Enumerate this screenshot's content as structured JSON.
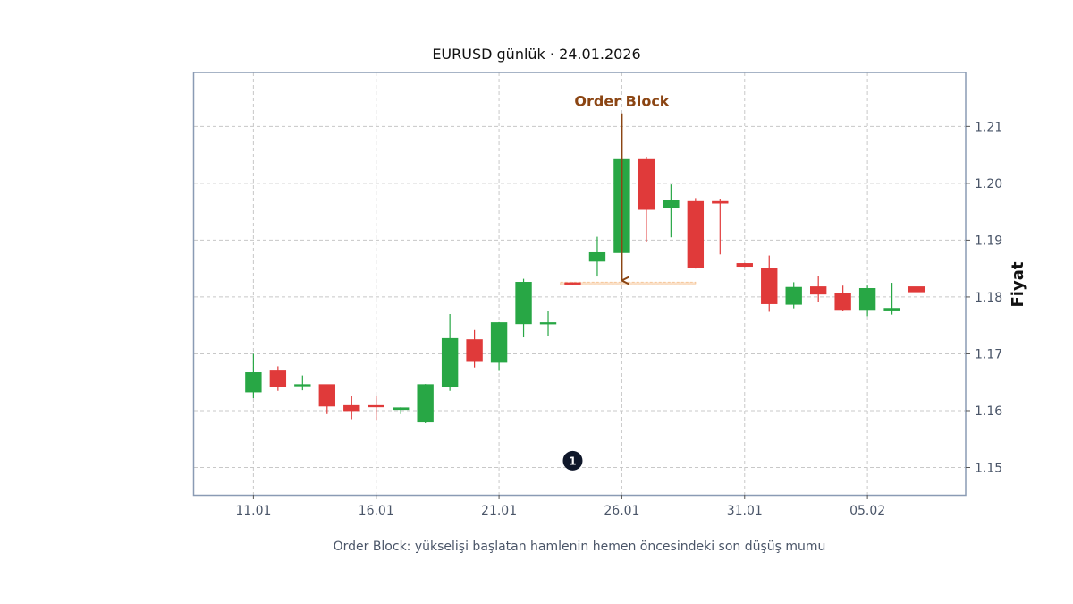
{
  "title": "EURUSD günlük · 24.01.2026",
  "caption": "Order Block: yükselişi başlatan hamlenin hemen öncesindeki son düşüş mumu",
  "colors": {
    "up": "#28a745",
    "down": "#e03a3a",
    "annotation": "#8b4513",
    "zone": "#f5c79a",
    "frame": "#8a9bb4",
    "badge": "#0f172a"
  },
  "chart_data": {
    "type": "candlestick",
    "title": "EURUSD günlük · 24.01.2026",
    "ylabel": "Fiyat",
    "xlabel": "",
    "y_axis_side": "right",
    "ylim": [
      1.1452,
      1.2195
    ],
    "yticks": [
      "1.15",
      "1.16",
      "1.17",
      "1.18",
      "1.19",
      "1.20",
      "1.21"
    ],
    "xticks": [
      {
        "date": "2026-01-11",
        "label": "11.01"
      },
      {
        "date": "2026-01-16",
        "label": "16.01"
      },
      {
        "date": "2026-01-21",
        "label": "21.01"
      },
      {
        "date": "2026-01-26",
        "label": "26.01"
      },
      {
        "date": "2026-01-31",
        "label": "31.01"
      },
      {
        "date": "2026-02-05",
        "label": "05.02"
      }
    ],
    "xlim": [
      "2026-01-08T14:00",
      "2026-02-09T00:00"
    ],
    "grid": true,
    "candles": [
      {
        "date": "2026-01-11",
        "open": 1.1633,
        "high": 1.17,
        "low": 1.1622,
        "close": 1.1667
      },
      {
        "date": "2026-01-12",
        "open": 1.167,
        "high": 1.1678,
        "low": 1.1635,
        "close": 1.1643
      },
      {
        "date": "2026-01-13",
        "open": 1.1644,
        "high": 1.1662,
        "low": 1.1636,
        "close": 1.1646
      },
      {
        "date": "2026-01-14",
        "open": 1.1646,
        "high": 1.1646,
        "low": 1.1594,
        "close": 1.1608
      },
      {
        "date": "2026-01-15",
        "open": 1.1609,
        "high": 1.1626,
        "low": 1.1585,
        "close": 1.16
      },
      {
        "date": "2026-01-16",
        "open": 1.1609,
        "high": 1.1626,
        "low": 1.1584,
        "close": 1.1607
      },
      {
        "date": "2026-01-17",
        "open": 1.1602,
        "high": 1.1606,
        "low": 1.1594,
        "close": 1.1605
      },
      {
        "date": "2026-01-18",
        "open": 1.158,
        "high": 1.1647,
        "low": 1.1578,
        "close": 1.1646
      },
      {
        "date": "2026-01-19",
        "open": 1.1643,
        "high": 1.177,
        "low": 1.1635,
        "close": 1.1727
      },
      {
        "date": "2026-01-20",
        "open": 1.1725,
        "high": 1.1742,
        "low": 1.1676,
        "close": 1.1688
      },
      {
        "date": "2026-01-21",
        "open": 1.1685,
        "high": 1.1756,
        "low": 1.167,
        "close": 1.1755
      },
      {
        "date": "2026-01-22",
        "open": 1.1753,
        "high": 1.1832,
        "low": 1.1729,
        "close": 1.1826
      },
      {
        "date": "2026-01-23",
        "open": 1.1754,
        "high": 1.1775,
        "low": 1.1731,
        "close": 1.1755
      },
      {
        "date": "2026-01-24",
        "open": 1.1825,
        "high": 1.1826,
        "low": 1.1822,
        "close": 1.1823
      },
      {
        "date": "2026-01-25",
        "open": 1.1863,
        "high": 1.1906,
        "low": 1.1836,
        "close": 1.1878
      },
      {
        "date": "2026-01-26",
        "open": 1.1878,
        "high": 1.2043,
        "low": 1.1876,
        "close": 1.2042
      },
      {
        "date": "2026-01-27",
        "open": 1.2042,
        "high": 1.2047,
        "low": 1.1897,
        "close": 1.1954
      },
      {
        "date": "2026-01-28",
        "open": 1.1957,
        "high": 1.1998,
        "low": 1.1905,
        "close": 1.197
      },
      {
        "date": "2026-01-29",
        "open": 1.1968,
        "high": 1.1974,
        "low": 1.185,
        "close": 1.1851
      },
      {
        "date": "2026-01-30",
        "open": 1.1968,
        "high": 1.1973,
        "low": 1.1875,
        "close": 1.1965
      },
      {
        "date": "2026-01-31",
        "open": 1.1859,
        "high": 1.186,
        "low": 1.1853,
        "close": 1.1854
      },
      {
        "date": "2026-02-01",
        "open": 1.185,
        "high": 1.1873,
        "low": 1.1774,
        "close": 1.1788
      },
      {
        "date": "2026-02-02",
        "open": 1.1787,
        "high": 1.1826,
        "low": 1.178,
        "close": 1.1817
      },
      {
        "date": "2026-02-03",
        "open": 1.1818,
        "high": 1.1837,
        "low": 1.1791,
        "close": 1.1805
      },
      {
        "date": "2026-02-04",
        "open": 1.1806,
        "high": 1.182,
        "low": 1.1775,
        "close": 1.1778
      },
      {
        "date": "2026-02-05",
        "open": 1.1778,
        "high": 1.182,
        "low": 1.1766,
        "close": 1.1815
      },
      {
        "date": "2026-02-06",
        "open": 1.1777,
        "high": 1.1825,
        "low": 1.1769,
        "close": 1.178
      },
      {
        "date": "2026-02-07",
        "open": 1.1818,
        "high": 1.1818,
        "low": 1.1809,
        "close": 1.1809
      }
    ],
    "annotations": [
      {
        "text": "Order Block",
        "arrow_from_date": "2026-01-26",
        "arrow_from_price": 1.2123,
        "arrow_to_date": "2026-01-26",
        "arrow_to_price": 1.1829
      },
      {
        "type": "zone",
        "start": "2026-01-24",
        "end": "2026-01-29",
        "low": 1.1822,
        "high": 1.1826
      },
      {
        "type": "badge",
        "text": "1",
        "date": "2026-01-24",
        "price": 1.1512
      }
    ]
  }
}
